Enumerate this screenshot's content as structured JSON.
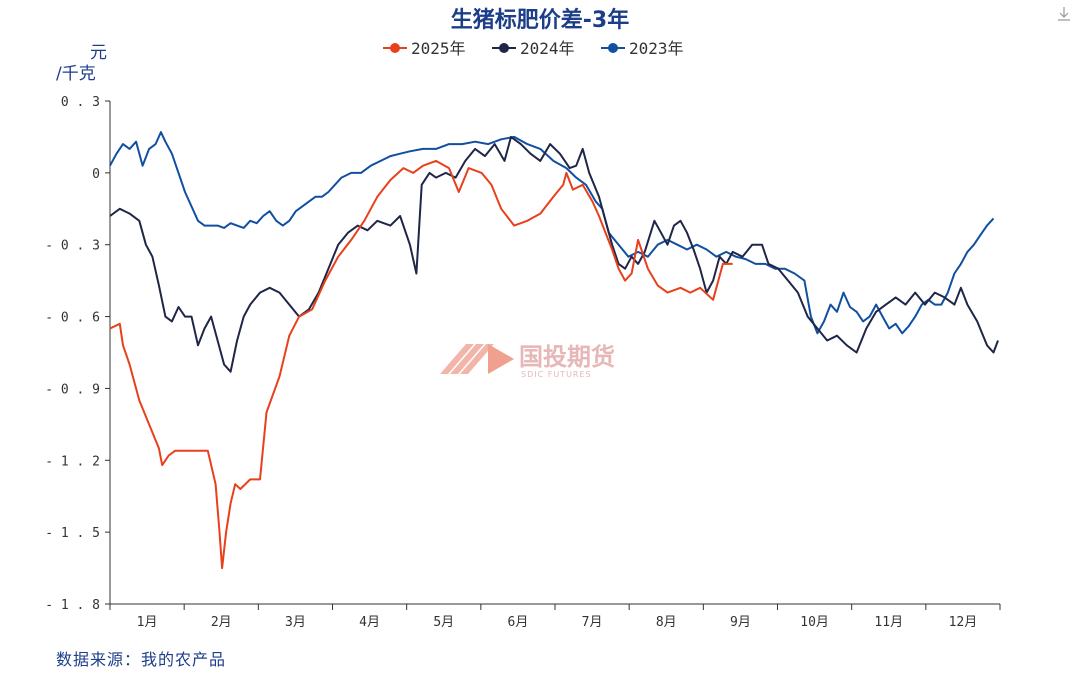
{
  "header": {
    "title": "生猪标肥价差-3年"
  },
  "axis": {
    "y_unit_line1": "元",
    "y_unit_line2": "/千克"
  },
  "source": "数据来源：我的农产品",
  "watermark": {
    "name": "国投期货",
    "sub": "SDIC FUTURES"
  },
  "colors": {
    "title": "#1c3e8a",
    "2025": "#e8401c",
    "2024": "#1f2647",
    "2023": "#114fa0"
  },
  "chart_data": {
    "type": "line",
    "title": "生猪标肥价差-3年",
    "ylabel": "元/千克",
    "ylim": [
      -1.8,
      0.3
    ],
    "yticks": [
      0.3,
      0,
      -0.3,
      -0.6,
      -0.9,
      -1.2,
      -1.5,
      -1.8
    ],
    "ytick_labels": [
      "0.3",
      "0",
      "-0.3",
      "-0.6",
      "-0.9",
      "-1.2",
      "-1.5",
      "-1.8"
    ],
    "categories": [
      "1月",
      "2月",
      "3月",
      "4月",
      "5月",
      "6月",
      "7月",
      "8月",
      "9月",
      "10月",
      "11月",
      "12月"
    ],
    "legend_position": "top-center",
    "grid": false,
    "series": [
      {
        "name": "2025年",
        "color": "#e8401c",
        "points": [
          [
            0.0,
            -0.65
          ],
          [
            0.15,
            -0.63
          ],
          [
            0.2,
            -0.72
          ],
          [
            0.3,
            -0.8
          ],
          [
            0.45,
            -0.95
          ],
          [
            0.6,
            -1.05
          ],
          [
            0.75,
            -1.15
          ],
          [
            0.8,
            -1.22
          ],
          [
            0.9,
            -1.18
          ],
          [
            1.0,
            -1.16
          ],
          [
            1.2,
            -1.16
          ],
          [
            1.5,
            -1.16
          ],
          [
            1.62,
            -1.3
          ],
          [
            1.68,
            -1.5
          ],
          [
            1.72,
            -1.65
          ],
          [
            1.78,
            -1.5
          ],
          [
            1.85,
            -1.38
          ],
          [
            1.92,
            -1.3
          ],
          [
            2.0,
            -1.32
          ],
          [
            2.15,
            -1.28
          ],
          [
            2.3,
            -1.28
          ],
          [
            2.4,
            -1.0
          ],
          [
            2.6,
            -0.85
          ],
          [
            2.75,
            -0.68
          ],
          [
            2.9,
            -0.6
          ],
          [
            3.1,
            -0.57
          ],
          [
            3.3,
            -0.45
          ],
          [
            3.5,
            -0.35
          ],
          [
            3.7,
            -0.28
          ],
          [
            3.9,
            -0.2
          ],
          [
            4.1,
            -0.1
          ],
          [
            4.3,
            -0.03
          ],
          [
            4.5,
            0.02
          ],
          [
            4.65,
            0.0
          ],
          [
            4.8,
            0.03
          ],
          [
            5.0,
            0.05
          ],
          [
            5.2,
            0.02
          ],
          [
            5.35,
            -0.08
          ],
          [
            5.5,
            0.02
          ],
          [
            5.7,
            0.0
          ],
          [
            5.85,
            -0.05
          ],
          [
            6.0,
            -0.15
          ],
          [
            6.2,
            -0.22
          ],
          [
            6.4,
            -0.2
          ],
          [
            6.6,
            -0.17
          ],
          [
            6.8,
            -0.1
          ],
          [
            6.95,
            -0.05
          ],
          [
            7.0,
            0.0
          ],
          [
            7.1,
            -0.07
          ],
          [
            7.25,
            -0.05
          ],
          [
            7.4,
            -0.12
          ],
          [
            7.5,
            -0.18
          ],
          [
            7.6,
            -0.25
          ],
          [
            7.7,
            -0.32
          ],
          [
            7.8,
            -0.4
          ],
          [
            7.9,
            -0.45
          ],
          [
            8.0,
            -0.42
          ],
          [
            8.1,
            -0.28
          ],
          [
            8.25,
            -0.4
          ],
          [
            8.4,
            -0.47
          ],
          [
            8.55,
            -0.5
          ],
          [
            8.75,
            -0.48
          ],
          [
            8.9,
            -0.5
          ],
          [
            9.05,
            -0.48
          ],
          [
            9.25,
            -0.53
          ],
          [
            9.4,
            -0.38
          ],
          [
            9.55,
            -0.38
          ]
        ]
      },
      {
        "name": "2024年",
        "color": "#1f2647",
        "points": [
          [
            0.0,
            -0.18
          ],
          [
            0.15,
            -0.15
          ],
          [
            0.3,
            -0.17
          ],
          [
            0.45,
            -0.2
          ],
          [
            0.55,
            -0.3
          ],
          [
            0.65,
            -0.35
          ],
          [
            0.75,
            -0.47
          ],
          [
            0.85,
            -0.6
          ],
          [
            0.95,
            -0.62
          ],
          [
            1.05,
            -0.56
          ],
          [
            1.15,
            -0.6
          ],
          [
            1.25,
            -0.6
          ],
          [
            1.35,
            -0.72
          ],
          [
            1.45,
            -0.65
          ],
          [
            1.55,
            -0.6
          ],
          [
            1.65,
            -0.7
          ],
          [
            1.75,
            -0.8
          ],
          [
            1.85,
            -0.83
          ],
          [
            1.95,
            -0.7
          ],
          [
            2.05,
            -0.6
          ],
          [
            2.15,
            -0.55
          ],
          [
            2.3,
            -0.5
          ],
          [
            2.45,
            -0.48
          ],
          [
            2.6,
            -0.5
          ],
          [
            2.75,
            -0.55
          ],
          [
            2.9,
            -0.6
          ],
          [
            3.05,
            -0.57
          ],
          [
            3.2,
            -0.5
          ],
          [
            3.35,
            -0.4
          ],
          [
            3.5,
            -0.3
          ],
          [
            3.65,
            -0.25
          ],
          [
            3.8,
            -0.22
          ],
          [
            3.95,
            -0.24
          ],
          [
            4.1,
            -0.2
          ],
          [
            4.3,
            -0.22
          ],
          [
            4.45,
            -0.18
          ],
          [
            4.6,
            -0.3
          ],
          [
            4.7,
            -0.42
          ],
          [
            4.78,
            -0.05
          ],
          [
            4.9,
            0.0
          ],
          [
            5.0,
            -0.02
          ],
          [
            5.15,
            0.0
          ],
          [
            5.3,
            -0.02
          ],
          [
            5.45,
            0.05
          ],
          [
            5.6,
            0.1
          ],
          [
            5.75,
            0.07
          ],
          [
            5.9,
            0.12
          ],
          [
            6.05,
            0.05
          ],
          [
            6.15,
            0.15
          ],
          [
            6.3,
            0.12
          ],
          [
            6.45,
            0.08
          ],
          [
            6.6,
            0.05
          ],
          [
            6.75,
            0.12
          ],
          [
            6.9,
            0.08
          ],
          [
            7.05,
            0.02
          ],
          [
            7.15,
            0.03
          ],
          [
            7.25,
            0.1
          ],
          [
            7.35,
            0.0
          ],
          [
            7.5,
            -0.1
          ],
          [
            7.6,
            -0.2
          ],
          [
            7.7,
            -0.3
          ],
          [
            7.8,
            -0.38
          ],
          [
            7.9,
            -0.4
          ],
          [
            8.0,
            -0.35
          ],
          [
            8.1,
            -0.38
          ],
          [
            8.2,
            -0.33
          ],
          [
            8.35,
            -0.2
          ],
          [
            8.45,
            -0.25
          ],
          [
            8.55,
            -0.3
          ],
          [
            8.65,
            -0.22
          ],
          [
            8.75,
            -0.2
          ],
          [
            8.85,
            -0.25
          ],
          [
            8.95,
            -0.32
          ],
          [
            9.05,
            -0.4
          ],
          [
            9.15,
            -0.5
          ],
          [
            9.25,
            -0.45
          ],
          [
            9.35,
            -0.35
          ],
          [
            9.45,
            -0.38
          ],
          [
            9.55,
            -0.33
          ],
          [
            9.7,
            -0.35
          ],
          [
            9.85,
            -0.3
          ],
          [
            10.0,
            -0.3
          ],
          [
            10.1,
            -0.38
          ],
          [
            10.25,
            -0.4
          ],
          [
            10.4,
            -0.45
          ],
          [
            10.55,
            -0.5
          ],
          [
            10.7,
            -0.6
          ],
          [
            10.85,
            -0.65
          ],
          [
            11.0,
            -0.7
          ],
          [
            11.15,
            -0.68
          ],
          [
            11.3,
            -0.72
          ],
          [
            11.45,
            -0.75
          ],
          [
            11.6,
            -0.65
          ],
          [
            11.75,
            -0.58
          ],
          [
            11.9,
            -0.55
          ],
          [
            12.05,
            -0.52
          ],
          [
            12.2,
            -0.55
          ],
          [
            12.35,
            -0.5
          ],
          [
            12.5,
            -0.55
          ],
          [
            12.65,
            -0.5
          ],
          [
            12.8,
            -0.52
          ],
          [
            12.95,
            -0.55
          ],
          [
            13.05,
            -0.48
          ],
          [
            13.15,
            -0.55
          ],
          [
            13.3,
            -0.62
          ],
          [
            13.45,
            -0.72
          ],
          [
            13.55,
            -0.75
          ],
          [
            13.62,
            -0.7
          ]
        ]
      },
      {
        "name": "2023年",
        "color": "#114fa0",
        "points": [
          [
            0.0,
            0.03
          ],
          [
            0.1,
            0.08
          ],
          [
            0.2,
            0.12
          ],
          [
            0.3,
            0.1
          ],
          [
            0.4,
            0.13
          ],
          [
            0.5,
            0.03
          ],
          [
            0.6,
            0.1
          ],
          [
            0.7,
            0.12
          ],
          [
            0.78,
            0.17
          ],
          [
            0.85,
            0.13
          ],
          [
            0.95,
            0.08
          ],
          [
            1.05,
            0.0
          ],
          [
            1.15,
            -0.08
          ],
          [
            1.25,
            -0.14
          ],
          [
            1.35,
            -0.2
          ],
          [
            1.45,
            -0.22
          ],
          [
            1.55,
            -0.22
          ],
          [
            1.65,
            -0.22
          ],
          [
            1.75,
            -0.23
          ],
          [
            1.85,
            -0.21
          ],
          [
            1.95,
            -0.22
          ],
          [
            2.05,
            -0.23
          ],
          [
            2.15,
            -0.2
          ],
          [
            2.25,
            -0.21
          ],
          [
            2.35,
            -0.18
          ],
          [
            2.45,
            -0.16
          ],
          [
            2.55,
            -0.2
          ],
          [
            2.65,
            -0.22
          ],
          [
            2.75,
            -0.2
          ],
          [
            2.85,
            -0.16
          ],
          [
            2.95,
            -0.14
          ],
          [
            3.05,
            -0.12
          ],
          [
            3.15,
            -0.1
          ],
          [
            3.25,
            -0.1
          ],
          [
            3.35,
            -0.08
          ],
          [
            3.45,
            -0.05
          ],
          [
            3.55,
            -0.02
          ],
          [
            3.7,
            0.0
          ],
          [
            3.85,
            0.0
          ],
          [
            4.0,
            0.03
          ],
          [
            4.15,
            0.05
          ],
          [
            4.3,
            0.07
          ],
          [
            4.45,
            0.08
          ],
          [
            4.6,
            0.09
          ],
          [
            4.8,
            0.1
          ],
          [
            5.0,
            0.1
          ],
          [
            5.2,
            0.12
          ],
          [
            5.4,
            0.12
          ],
          [
            5.6,
            0.13
          ],
          [
            5.8,
            0.12
          ],
          [
            6.0,
            0.14
          ],
          [
            6.2,
            0.15
          ],
          [
            6.4,
            0.12
          ],
          [
            6.6,
            0.1
          ],
          [
            6.8,
            0.05
          ],
          [
            7.0,
            0.02
          ],
          [
            7.15,
            -0.02
          ],
          [
            7.3,
            -0.05
          ],
          [
            7.45,
            -0.12
          ],
          [
            7.55,
            -0.15
          ],
          [
            7.65,
            -0.25
          ],
          [
            7.8,
            -0.3
          ],
          [
            7.95,
            -0.35
          ],
          [
            8.1,
            -0.33
          ],
          [
            8.25,
            -0.35
          ],
          [
            8.4,
            -0.3
          ],
          [
            8.55,
            -0.28
          ],
          [
            8.7,
            -0.3
          ],
          [
            8.85,
            -0.32
          ],
          [
            9.0,
            -0.3
          ],
          [
            9.15,
            -0.32
          ],
          [
            9.3,
            -0.35
          ],
          [
            9.45,
            -0.33
          ],
          [
            9.6,
            -0.35
          ],
          [
            9.75,
            -0.36
          ],
          [
            9.9,
            -0.38
          ],
          [
            10.05,
            -0.38
          ],
          [
            10.2,
            -0.4
          ],
          [
            10.35,
            -0.4
          ],
          [
            10.5,
            -0.42
          ],
          [
            10.65,
            -0.45
          ],
          [
            10.75,
            -0.6
          ],
          [
            10.85,
            -0.67
          ],
          [
            10.95,
            -0.62
          ],
          [
            11.05,
            -0.55
          ],
          [
            11.15,
            -0.58
          ],
          [
            11.25,
            -0.5
          ],
          [
            11.35,
            -0.56
          ],
          [
            11.45,
            -0.58
          ],
          [
            11.55,
            -0.62
          ],
          [
            11.65,
            -0.6
          ],
          [
            11.75,
            -0.55
          ],
          [
            11.85,
            -0.6
          ],
          [
            11.95,
            -0.65
          ],
          [
            12.05,
            -0.63
          ],
          [
            12.15,
            -0.67
          ],
          [
            12.25,
            -0.64
          ],
          [
            12.35,
            -0.6
          ],
          [
            12.45,
            -0.55
          ],
          [
            12.55,
            -0.53
          ],
          [
            12.65,
            -0.55
          ],
          [
            12.75,
            -0.55
          ],
          [
            12.85,
            -0.5
          ],
          [
            12.95,
            -0.42
          ],
          [
            13.05,
            -0.38
          ],
          [
            13.15,
            -0.33
          ],
          [
            13.25,
            -0.3
          ],
          [
            13.35,
            -0.26
          ],
          [
            13.45,
            -0.22
          ],
          [
            13.55,
            -0.19
          ]
        ]
      }
    ]
  }
}
